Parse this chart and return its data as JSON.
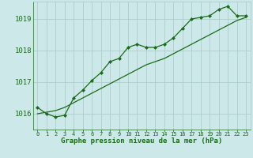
{
  "xlabel": "Graphe pression niveau de la mer (hPa)",
  "bg_color": "#cce8e8",
  "grid_color": "#a8c8c8",
  "line_color": "#1a6b1a",
  "hours": [
    0,
    1,
    2,
    3,
    4,
    5,
    6,
    7,
    8,
    9,
    10,
    11,
    12,
    13,
    14,
    15,
    16,
    17,
    18,
    19,
    20,
    21,
    22,
    23
  ],
  "series1": [
    1016.2,
    1016.0,
    1015.9,
    1015.95,
    1016.5,
    1016.75,
    1017.05,
    1017.3,
    1017.65,
    1017.75,
    1018.1,
    1018.2,
    1018.1,
    1018.1,
    1018.2,
    1018.4,
    1018.7,
    1019.0,
    1019.05,
    1019.1,
    1019.3,
    1019.4,
    1019.1,
    1019.1
  ],
  "series2": [
    1016.0,
    1016.05,
    1016.1,
    1016.2,
    1016.35,
    1016.5,
    1016.65,
    1016.8,
    1016.95,
    1017.1,
    1017.25,
    1017.4,
    1017.55,
    1017.65,
    1017.75,
    1017.9,
    1018.05,
    1018.2,
    1018.35,
    1018.5,
    1018.65,
    1018.8,
    1018.95,
    1019.05
  ],
  "ylim": [
    1015.5,
    1019.55
  ],
  "yticks": [
    1016,
    1017,
    1018,
    1019
  ],
  "xlim": [
    -0.5,
    23.5
  ]
}
